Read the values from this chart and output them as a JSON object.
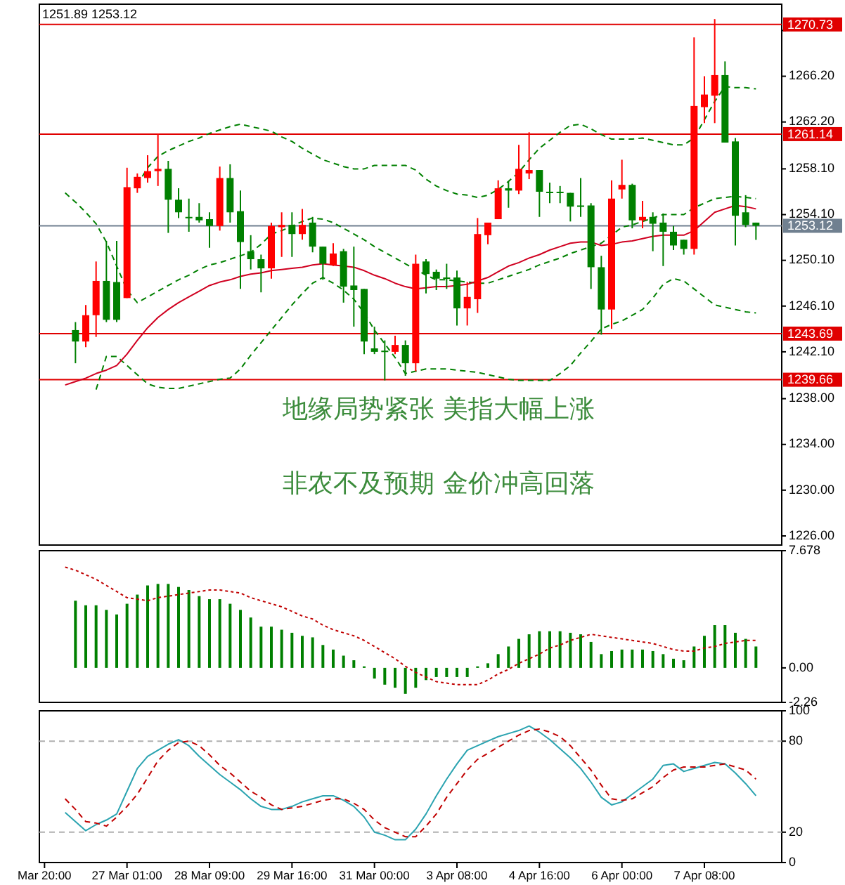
{
  "chart_data": [
    {
      "type": "candlestick",
      "title": "1251.89 1253.12",
      "categories": [
        null,
        null,
        null,
        null,
        null,
        null,
        null,
        null,
        null,
        null,
        null,
        null,
        null,
        null,
        null,
        null,
        null,
        null,
        null,
        null,
        null,
        null,
        null,
        null,
        null,
        null,
        null,
        null,
        null,
        null,
        null,
        null,
        null,
        null,
        null,
        null,
        null,
        null,
        null,
        null,
        null,
        null,
        null,
        null,
        null,
        null,
        null,
        null,
        null,
        null,
        null,
        null,
        null,
        null,
        null,
        null,
        null,
        null,
        null,
        null,
        null,
        null,
        null,
        null,
        null,
        null,
        null,
        null,
        null,
        null,
        null,
        null
      ],
      "ohlc": [
        null,
        null,
        null,
        [
          1244.0,
          1244.7,
          1241.1,
          1243.0
        ],
        [
          1243.0,
          1246.2,
          1242.5,
          1245.3
        ],
        [
          1245.3,
          1250.0,
          1243.4,
          1248.3
        ],
        [
          1248.3,
          1251.8,
          1244.7,
          1244.9
        ],
        [
          1248.2,
          1251.8,
          1244.7,
          1244.9
        ],
        [
          1246.8,
          1258.2,
          1246.8,
          1256.5
        ],
        [
          1256.4,
          1257.7,
          1256.0,
          1257.4
        ],
        [
          1257.3,
          1259.3,
          1256.9,
          1257.9
        ],
        [
          1257.9,
          1261.2,
          1256.6,
          1258.1
        ],
        [
          1258.1,
          1258.8,
          1252.5,
          1255.4
        ],
        [
          1255.4,
          1256.4,
          1253.8,
          1254.3
        ],
        [
          1253.9,
          1255.5,
          1252.6,
          1253.8
        ],
        [
          1253.9,
          1255.1,
          1253.4,
          1253.6
        ],
        [
          1253.7,
          1254.3,
          1251.2,
          1253.1
        ],
        [
          1253.1,
          1258.3,
          1252.7,
          1257.3
        ],
        [
          1257.3,
          1258.5,
          1253.4,
          1254.3
        ],
        [
          1254.4,
          1256.2,
          1247.6,
          1251.7
        ],
        [
          1250.9,
          1252.3,
          1249.3,
          1250.2
        ],
        [
          1250.2,
          1250.6,
          1247.3,
          1249.4
        ],
        [
          1249.4,
          1253.4,
          1248.5,
          1253.1
        ],
        [
          1253.0,
          1254.3,
          1250.4,
          1253.2
        ],
        [
          1253.2,
          1254.3,
          1250.4,
          1252.4
        ],
        [
          1252.4,
          1254.6,
          1251.9,
          1253.2
        ],
        [
          1253.4,
          1253.9,
          1250.8,
          1251.3
        ],
        [
          1251.3,
          1251.3,
          1248.4,
          1249.8
        ],
        [
          1249.7,
          1251.6,
          1249.6,
          1250.7
        ],
        [
          1250.9,
          1251.1,
          1246.4,
          1247.8
        ],
        [
          1247.9,
          1251.3,
          1244.3,
          1247.5
        ],
        [
          1247.6,
          1247.6,
          1241.9,
          1243.0
        ],
        [
          1242.4,
          1244.3,
          1241.9,
          1242.1
        ],
        [
          1242.2,
          1243.1,
          1239.6,
          1242.1
        ],
        [
          1242.1,
          1243.5,
          1241.9,
          1242.7
        ],
        [
          1242.7,
          1243.1,
          1240.0,
          1241.1
        ],
        [
          1241.1,
          1250.6,
          1240.4,
          1249.8
        ],
        [
          1250.0,
          1250.2,
          1247.2,
          1248.9
        ],
        [
          1249.1,
          1249.3,
          1247.5,
          1248.5
        ],
        [
          1248.6,
          1249.8,
          1247.6,
          1248.5
        ],
        [
          1248.6,
          1249.2,
          1244.4,
          1245.9
        ],
        [
          1245.9,
          1248.2,
          1244.4,
          1246.9
        ],
        [
          1246.7,
          1253.8,
          1245.5,
          1252.4
        ],
        [
          1252.3,
          1253.4,
          1251.5,
          1253.4
        ],
        [
          1253.7,
          1257.1,
          1253.7,
          1256.4
        ],
        [
          1256.4,
          1257.0,
          1254.7,
          1256.2
        ],
        [
          1256.2,
          1260.2,
          1255.9,
          1258.1
        ],
        [
          1257.7,
          1261.3,
          1257.2,
          1258.0
        ],
        [
          1258.0,
          1258.0,
          1253.9,
          1256.1
        ],
        [
          1256.1,
          1256.9,
          1255.1,
          1256.0
        ],
        [
          1256.1,
          1256.6,
          1255.1,
          1256.0
        ],
        [
          1256.0,
          1256.0,
          1253.5,
          1254.8
        ],
        [
          1254.9,
          1257.3,
          1253.9,
          1254.8
        ],
        [
          1254.9,
          1255.1,
          1247.6,
          1249.5
        ],
        [
          1249.5,
          1250.5,
          1243.6,
          1245.8
        ],
        [
          1245.8,
          1257.1,
          1244.1,
          1255.5
        ],
        [
          1256.3,
          1258.9,
          1255.5,
          1256.7
        ],
        [
          1256.7,
          1256.8,
          1252.9,
          1253.6
        ],
        [
          1253.6,
          1255.3,
          1252.9,
          1253.9
        ],
        [
          1253.9,
          1254.3,
          1250.9,
          1253.3
        ],
        [
          1253.4,
          1254.2,
          1249.6,
          1252.6
        ],
        [
          1252.6,
          1253.1,
          1251.0,
          1251.4
        ],
        [
          1251.9,
          1251.9,
          1250.6,
          1251.1
        ],
        [
          1251.1,
          1269.6,
          1250.6,
          1263.6
        ],
        [
          1263.5,
          1266.2,
          1262.1,
          1264.6
        ],
        [
          1264.5,
          1271.2,
          1262.1,
          1266.3
        ],
        [
          1266.3,
          1267.5,
          1260.4,
          1260.4
        ],
        [
          1260.5,
          1260.8,
          1251.4,
          1254.0
        ],
        [
          1254.3,
          1255.8,
          1253.0,
          1253.2
        ],
        [
          1253.4,
          1253.4,
          1251.89,
          1253.12
        ],
        null,
        null
      ],
      "colors": [
        null,
        null,
        null,
        "#008000",
        "#ff0000",
        "#ff0000",
        "#008000",
        "#008000",
        "#ff0000",
        "#ff0000",
        "#ff0000",
        "#ff0000",
        "#008000",
        "#008000",
        "#008000",
        "#008000",
        "#008000",
        "#ff0000",
        "#008000",
        "#008000",
        "#008000",
        "#008000",
        "#ff0000",
        "#ff0000",
        "#008000",
        "#ff0000",
        "#008000",
        "#008000",
        "#ff0000",
        "#008000",
        "#008000",
        "#008000",
        "#008000",
        "#008000",
        "#ff0000",
        "#008000",
        "#ff0000",
        "#008000",
        "#008000",
        "#008000",
        "#008000",
        "#ff0000",
        "#ff0000",
        "#ff0000",
        "#ff0000",
        "#008000",
        "#ff0000",
        "#ff0000",
        "#008000",
        "#008000",
        "#008000",
        "#008000",
        "#008000",
        "#008000",
        "#008000",
        "#ff0000",
        "#ff0000",
        "#008000",
        "#ff0000",
        "#008000",
        "#008000",
        "#008000",
        "#008000",
        "#ff0000",
        "#ff0000",
        "#ff0000",
        "#008000",
        "#008000",
        "#008000",
        "#008000",
        null,
        null
      ],
      "series": [
        {
          "type": "line",
          "color": "#008000",
          "line_style": "dashed",
          "values": [
            null,
            null,
            null,
            null,
            null,
            null,
            null,
            null,
            null,
            1256.7,
            1258.2,
            1259.2,
            1259.7,
            1260.1,
            1260.5,
            1260.8,
            1261.2,
            1261.5,
            1261.8,
            1262.0,
            1261.8,
            1261.6,
            1261.4,
            1260.9,
            1260.5,
            1259.9,
            1259.4,
            1258.9,
            1258.6,
            1258.3,
            1258.1,
            1258.1,
            1258.4,
            1258.4,
            1258.4,
            1258.4,
            1258.0,
            1257.2,
            1256.6,
            1256.2,
            1255.9,
            1255.8,
            1255.6,
            1255.8,
            1256.3,
            1257.0,
            1257.8,
            1258.9,
            1259.9,
            1260.6,
            1261.3,
            1261.9,
            1262.0,
            1261.6,
            1261.1,
            1260.7,
            1260.7,
            1260.7,
            1260.8,
            1260.6,
            1260.4,
            1260.2,
            1260.2,
            1260.8,
            1262.4,
            1264.0,
            1265.3,
            1265.2,
            1265.2,
            1265.1,
            null,
            null
          ]
        },
        {
          "type": "line",
          "color": "#008000",
          "line_style": "dashed",
          "values": [
            null,
            null,
            1256.0,
            1255.2,
            1254.3,
            1253.3,
            1251.7,
            1249.6,
            1247.5,
            1246.4,
            1246.9,
            1247.4,
            1247.9,
            1248.4,
            1248.8,
            1249.3,
            1249.7,
            1249.9,
            1250.2,
            1250.5,
            1250.8,
            1251.5,
            1252.4,
            1252.7,
            1253.1,
            1253.5,
            1253.8,
            1253.7,
            1253.4,
            1252.9,
            1252.4,
            1251.9,
            1251.3,
            1250.8,
            1250.3,
            1249.8,
            1249.3,
            1248.8,
            1248.4,
            1248.4,
            1248.3,
            1248.2,
            1248.1,
            1248.1,
            1248.4,
            1248.7,
            1249.0,
            1249.3,
            1249.7,
            1250.0,
            1250.3,
            1250.7,
            1251.0,
            1251.3,
            1251.6,
            1252.3,
            1253.0,
            1253.2,
            1253.5,
            1253.8,
            1254.1,
            1254.1,
            1254.1,
            1254.7,
            1255.1,
            1255.5,
            1255.6,
            1255.7,
            1255.6,
            1255.5,
            null,
            null
          ]
        },
        {
          "type": "line",
          "color": "#008000",
          "line_style": "dashed",
          "values": [
            null,
            null,
            null,
            null,
            null,
            1238.8,
            1241.7,
            1241.7,
            1240.9,
            1240.1,
            1239.3,
            1239.0,
            1238.9,
            1238.9,
            1239.1,
            1239.3,
            1239.5,
            1239.7,
            1239.8,
            1240.6,
            1241.8,
            1242.9,
            1244.0,
            1245.1,
            1246.2,
            1247.2,
            1248.1,
            1248.6,
            1248.1,
            1247.5,
            1246.7,
            1245.5,
            1244.0,
            1242.8,
            1241.6,
            1240.2,
            1240.4,
            1240.6,
            1240.6,
            1240.6,
            1240.5,
            1240.4,
            1240.3,
            1240.1,
            1239.9,
            1239.7,
            1239.6,
            1239.6,
            1239.6,
            1239.6,
            1240.2,
            1240.9,
            1242.0,
            1243.0,
            1244.1,
            1244.5,
            1244.8,
            1245.3,
            1245.8,
            1246.8,
            1248.0,
            1248.5,
            1248.3,
            1247.6,
            1246.9,
            1246.2,
            1246.0,
            1245.8,
            1245.6,
            1245.5,
            null,
            null
          ]
        },
        {
          "type": "line",
          "color": "#d00020",
          "line_style": "solid",
          "values": [
            null,
            null,
            1239.2,
            1239.5,
            1239.8,
            1240.2,
            1240.5,
            1240.9,
            1241.9,
            1243.1,
            1244.2,
            1245.1,
            1245.8,
            1246.4,
            1246.9,
            1247.4,
            1247.9,
            1248.2,
            1248.4,
            1248.7,
            1248.9,
            1249.0,
            1249.2,
            1249.3,
            1249.4,
            1249.5,
            1249.7,
            1249.8,
            1249.7,
            1249.6,
            1249.5,
            1249.2,
            1248.8,
            1248.5,
            1248.1,
            1247.8,
            1247.6,
            1247.7,
            1247.8,
            1247.8,
            1247.9,
            1248.0,
            1248.3,
            1248.6,
            1249.1,
            1249.6,
            1249.9,
            1250.3,
            1250.6,
            1251.0,
            1251.3,
            1251.6,
            1251.7,
            1251.7,
            1251.4,
            1251.5,
            1251.7,
            1251.8,
            1252.0,
            1252.2,
            1252.3,
            1252.3,
            1252.3,
            1252.7,
            1253.5,
            1254.3,
            1254.6,
            1254.9,
            1254.8,
            1254.6,
            null,
            null
          ]
        }
      ],
      "ylim": [
        1225.2,
        1272.5
      ],
      "yticks": [
        {
          "value": 1226,
          "label": "1226.00"
        },
        {
          "value": 1230,
          "label": "1230.00"
        },
        {
          "value": 1234,
          "label": "1234.00"
        },
        {
          "value": 1238,
          "label": "1238.00"
        },
        {
          "value": 1242.1,
          "label": "1242.10"
        },
        {
          "value": 1246.1,
          "label": "1246.10"
        },
        {
          "value": 1250.1,
          "label": "1250.10"
        },
        {
          "value": 1254.1,
          "label": "1254.10"
        },
        {
          "value": 1258.1,
          "label": "1258.10"
        },
        {
          "value": 1262.2,
          "label": "1262.20"
        },
        {
          "value": 1266.2,
          "label": "1266.20"
        },
        {
          "value": 1270.2,
          "label": null
        }
      ],
      "ref_lines": [
        {
          "axis": "y",
          "value": 1270.73,
          "label": "1270.73",
          "color": "#e00000"
        },
        {
          "axis": "y",
          "value": 1261.14,
          "label": "1261.14",
          "color": "#e00000"
        },
        {
          "axis": "y",
          "value": 1253.12,
          "label": "1253.12",
          "color": "#708090"
        },
        {
          "axis": "y",
          "value": 1243.69,
          "label": "1243.69",
          "color": "#e00000"
        },
        {
          "axis": "y",
          "value": 1239.66,
          "label": "1239.66",
          "color": "#e00000"
        }
      ],
      "annotations": [
        "地缘局势紧张 美指大幅上涨",
        "非农不及预期 金价冲高回落"
      ],
      "tick_labels": "y"
    },
    {
      "type": "bar",
      "ylim": [
        -2.26,
        7.678
      ],
      "yticks": [
        7.678,
        {
          "value": 0,
          "label": "0.00"
        },
        -2.26
      ],
      "tick_labels": "y",
      "categories": [
        null,
        null,
        null,
        null,
        null,
        null,
        null,
        null,
        null,
        null,
        null,
        null,
        null,
        null,
        null,
        null,
        null,
        null,
        null,
        null,
        null,
        null,
        null,
        null,
        null,
        null,
        null,
        null,
        null,
        null,
        null,
        null,
        null,
        null,
        null,
        null,
        null,
        null,
        null,
        null,
        null,
        null,
        null,
        null,
        null,
        null,
        null,
        null,
        null,
        null,
        null,
        null,
        null,
        null,
        null,
        null,
        null,
        null,
        null,
        null,
        null,
        null,
        null,
        null,
        null,
        null,
        null,
        null,
        null,
        null,
        null,
        null
      ],
      "series": [
        {
          "type": "bar",
          "color": "#008000",
          "values": [
            null,
            null,
            null,
            4.4,
            4.1,
            4.1,
            3.8,
            3.5,
            4.2,
            4.8,
            5.4,
            5.5,
            5.5,
            5.3,
            5.1,
            4.7,
            4.5,
            4.5,
            4.2,
            3.8,
            3.3,
            2.7,
            2.7,
            2.5,
            2.3,
            2.1,
            2.0,
            1.5,
            1.2,
            0.8,
            0.5,
            0.1,
            -0.7,
            -1.1,
            -1.3,
            -1.7,
            -1.3,
            -0.8,
            -0.6,
            -0.6,
            -0.6,
            -0.6,
            0.1,
            0.3,
            0.9,
            1.4,
            1.9,
            2.2,
            2.4,
            2.4,
            2.4,
            2.3,
            2.2,
            1.7,
            0.9,
            1.1,
            1.2,
            1.2,
            1.2,
            1.1,
            0.9,
            0.6,
            0.5,
            1.4,
            2.1,
            2.8,
            2.8,
            2.3,
            1.9,
            1.4,
            null,
            null
          ]
        },
        {
          "type": "line",
          "color": "#c00000",
          "line_style": "dotted",
          "values": [
            null,
            null,
            6.6,
            6.4,
            6.1,
            5.8,
            5.4,
            5.0,
            4.6,
            4.5,
            4.4,
            4.6,
            4.7,
            4.8,
            4.9,
            5.0,
            5.1,
            5.1,
            5.0,
            4.9,
            4.6,
            4.4,
            4.2,
            4.0,
            3.7,
            3.4,
            3.2,
            2.8,
            2.5,
            2.3,
            2.1,
            1.8,
            1.4,
            1.0,
            0.6,
            0.1,
            -0.3,
            -0.6,
            -0.9,
            -1.0,
            -1.1,
            -1.1,
            -1.1,
            -0.8,
            -0.4,
            -0.1,
            0.3,
            0.6,
            0.9,
            1.3,
            1.5,
            1.8,
            2.0,
            2.2,
            2.1,
            2.0,
            1.9,
            1.8,
            1.7,
            1.6,
            1.4,
            1.2,
            1.1,
            1.1,
            1.3,
            1.4,
            1.6,
            1.7,
            1.8,
            1.8,
            null,
            null
          ]
        }
      ]
    },
    {
      "type": "line",
      "ylim": [
        0,
        100
      ],
      "yticks": [
        100,
        80,
        20,
        0
      ],
      "categories": [
        "Mar 20:00",
        null,
        null,
        null,
        null,
        null,
        null,
        null,
        "27 Mar 01:00",
        null,
        null,
        null,
        null,
        null,
        null,
        null,
        "28 Mar 09:00",
        null,
        null,
        null,
        null,
        null,
        null,
        null,
        "29 Mar 16:00",
        null,
        null,
        null,
        null,
        null,
        null,
        null,
        "31 Mar 00:00",
        null,
        null,
        null,
        null,
        null,
        null,
        null,
        "3 Apr 08:00",
        null,
        null,
        null,
        null,
        null,
        null,
        null,
        "4 Apr 16:00",
        null,
        null,
        null,
        null,
        null,
        null,
        null,
        "6 Apr 00:00",
        null,
        null,
        null,
        null,
        null,
        null,
        null,
        "7 Apr 08:00",
        null,
        null,
        null,
        null,
        null,
        null,
        null
      ],
      "ref_lines": [
        {
          "axis": "y",
          "value": 80,
          "label": null,
          "color": "#b0b0b0",
          "line_style": "dashed"
        },
        {
          "axis": "y",
          "value": 20,
          "label": null,
          "color": "#b0b0b0",
          "line_style": "dashed"
        }
      ],
      "series": [
        {
          "color": "#2aa3b0",
          "line_style": "solid",
          "values": [
            null,
            null,
            33,
            27,
            21,
            25,
            28,
            32,
            47,
            62,
            70,
            74,
            78,
            81,
            77,
            70,
            64,
            58,
            53,
            48,
            42,
            37,
            35,
            35,
            37,
            40,
            42,
            44,
            44,
            41,
            37,
            30,
            20,
            18,
            15,
            15,
            22,
            32,
            44,
            55,
            65,
            74,
            77,
            80,
            83,
            85,
            87,
            90,
            86,
            81,
            75,
            69,
            62,
            53,
            43,
            38,
            40,
            45,
            50,
            55,
            64,
            65,
            60,
            62,
            64,
            66,
            65,
            59,
            52,
            44,
            null,
            null
          ]
        },
        {
          "color": "#c00000",
          "line_style": "dashed",
          "values": [
            null,
            null,
            42,
            35,
            27,
            26,
            24,
            30,
            37,
            45,
            56,
            67,
            74,
            79,
            80,
            77,
            71,
            64,
            59,
            53,
            47,
            43,
            38,
            35,
            36,
            37,
            39,
            41,
            42,
            42,
            39,
            35,
            28,
            23,
            20,
            17,
            17,
            24,
            32,
            43,
            52,
            61,
            68,
            72,
            76,
            80,
            84,
            87,
            88,
            86,
            83,
            77,
            69,
            61,
            51,
            42,
            41,
            42,
            46,
            50,
            56,
            61,
            63,
            63,
            63,
            64,
            65,
            63,
            61,
            55,
            null,
            null
          ]
        }
      ]
    }
  ]
}
